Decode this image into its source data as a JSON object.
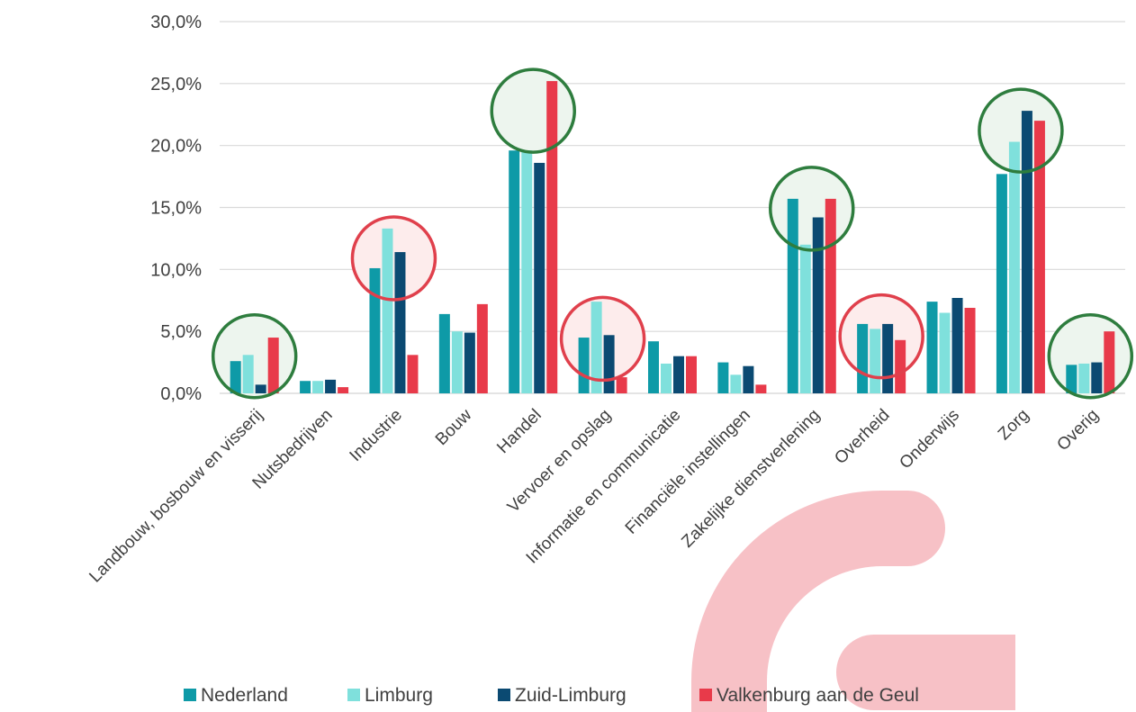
{
  "chart_data": {
    "type": "bar",
    "title": "",
    "xlabel": "",
    "ylabel": "",
    "ylim": [
      0,
      30
    ],
    "y_ticks": [
      "0,0%",
      "5,0%",
      "10,0%",
      "15,0%",
      "20,0%",
      "25,0%",
      "30,0%"
    ],
    "grid": "horizontal",
    "legend_position": "bottom",
    "categories": [
      "Landbouw, bosbouw en visserij",
      "Nutsbedrijven",
      "Industrie",
      "Bouw",
      "Handel",
      "Vervoer en opslag",
      "Informatie en communicatie",
      "Financiële instellingen",
      "Zakelijke dienstverlening",
      "Overheid",
      "Onderwijs",
      "Zorg",
      "Overig"
    ],
    "series": [
      {
        "name": "Nederland",
        "color": "#0E9AA7",
        "values": [
          2.6,
          1.0,
          10.1,
          6.4,
          19.6,
          4.5,
          4.2,
          2.5,
          15.7,
          5.6,
          7.4,
          17.7,
          2.3
        ]
      },
      {
        "name": "Limburg",
        "color": "#7FE0DC",
        "values": [
          3.1,
          1.0,
          13.3,
          5.0,
          19.6,
          7.4,
          2.4,
          1.5,
          12.0,
          5.2,
          6.5,
          20.3,
          2.4
        ]
      },
      {
        "name": "Zuid-Limburg",
        "color": "#0B4A72",
        "values": [
          0.7,
          1.1,
          11.4,
          4.9,
          18.6,
          4.7,
          3.0,
          2.2,
          14.2,
          5.6,
          7.7,
          22.8,
          2.5
        ]
      },
      {
        "name": "Valkenburg aan de Geul",
        "color": "#E83A4A",
        "values": [
          4.5,
          0.5,
          3.1,
          7.2,
          25.2,
          1.3,
          3.0,
          0.7,
          15.7,
          4.3,
          6.9,
          22.0,
          5.0
        ]
      }
    ],
    "highlight_circles": [
      {
        "category": "Landbouw, bosbouw en visserij",
        "color": "green",
        "at_value": 3.0
      },
      {
        "category": "Industrie",
        "color": "red",
        "at_value": 10.9
      },
      {
        "category": "Handel",
        "color": "green",
        "at_value": 22.8
      },
      {
        "category": "Vervoer en opslag",
        "color": "red",
        "at_value": 4.4
      },
      {
        "category": "Zakelijke dienstverlening",
        "color": "green",
        "at_value": 14.9
      },
      {
        "category": "Overheid",
        "color": "red",
        "at_value": 4.6
      },
      {
        "category": "Zorg",
        "color": "green",
        "at_value": 21.2
      },
      {
        "category": "Overig",
        "color": "green",
        "at_value": 3.0
      }
    ]
  },
  "colors": {
    "grid": "#D9D9D9",
    "axis_text": "#404040",
    "circle_green": "#2E7D3E",
    "circle_green_fill": "#EDF5EE",
    "circle_red": "#E0404C",
    "circle_red_fill": "#FDECEC",
    "logo_shape": "#F7C1C6"
  },
  "logo": {
    "name": "brand-g-logo-shape"
  }
}
